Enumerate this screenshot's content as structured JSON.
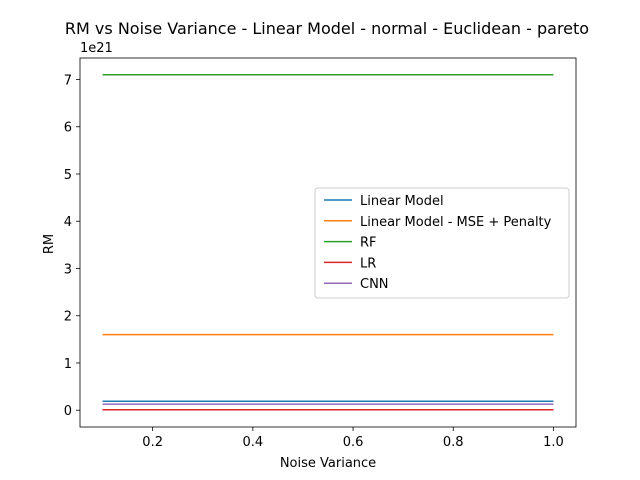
{
  "chart_data": {
    "type": "line",
    "title": "RM vs Noise Variance - Linear Model - normal - Euclidean - pareto",
    "xlabel": "Noise Variance",
    "ylabel": "RM",
    "y_offset_label": "1e21",
    "y_scale": 1e+21,
    "xlim": [
      0.055,
      1.045
    ],
    "ylim": [
      -0.355,
      7.455
    ],
    "xticks": [
      0.2,
      0.4,
      0.6,
      0.8,
      1.0
    ],
    "xtick_labels": [
      "0.2",
      "0.4",
      "0.6",
      "0.8",
      "1.0"
    ],
    "yticks": [
      0,
      1,
      2,
      3,
      4,
      5,
      6,
      7
    ],
    "ytick_labels": [
      "0",
      "1",
      "2",
      "3",
      "4",
      "5",
      "6",
      "7"
    ],
    "grid": false,
    "legend_position": "center-right",
    "x": [
      0.1,
      1.0
    ],
    "series": [
      {
        "name": "Linear Model",
        "color": "#1f77b4",
        "values": [
          0.19,
          0.19
        ]
      },
      {
        "name": "Linear Model - MSE + Penalty",
        "color": "#ff7f0e",
        "values": [
          1.6,
          1.6
        ]
      },
      {
        "name": "RF",
        "color": "#2ca02c",
        "values": [
          7.1,
          7.1
        ]
      },
      {
        "name": "LR",
        "color": "#d62728",
        "values": [
          0.01,
          0.01
        ]
      },
      {
        "name": "CNN",
        "color": "#9467bd",
        "values": [
          0.13,
          0.13
        ]
      }
    ]
  }
}
